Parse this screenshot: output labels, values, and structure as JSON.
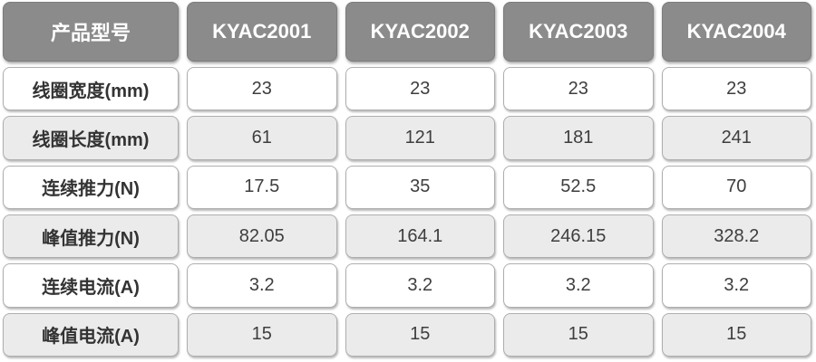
{
  "table": {
    "header": {
      "label": "产品型号",
      "models": [
        "KYAC2001",
        "KYAC2002",
        "KYAC2003",
        "KYAC2004"
      ]
    },
    "rows": [
      {
        "label": "线圈宽度(mm)",
        "values": [
          "23",
          "23",
          "23",
          "23"
        ]
      },
      {
        "label": "线圈长度(mm)",
        "values": [
          "61",
          "121",
          "181",
          "241"
        ]
      },
      {
        "label": "连续推力(N)",
        "values": [
          "17.5",
          "35",
          "52.5",
          "70"
        ]
      },
      {
        "label": "峰值推力(N)",
        "values": [
          "82.05",
          "164.1",
          "246.15",
          "328.2"
        ]
      },
      {
        "label": "连续电流(A)",
        "values": [
          "3.2",
          "3.2",
          "3.2",
          "3.2"
        ]
      },
      {
        "label": "峰值电流(A)",
        "values": [
          "15",
          "15",
          "15",
          "15"
        ]
      }
    ]
  },
  "colors": {
    "header_bg": "#8b8b8b",
    "header_text": "#ffffff",
    "row_bg": "#ffffff",
    "row_alt_bg": "#ebebeb",
    "cell_border": "#aeaeae",
    "value_text": "#3e3e3e"
  }
}
